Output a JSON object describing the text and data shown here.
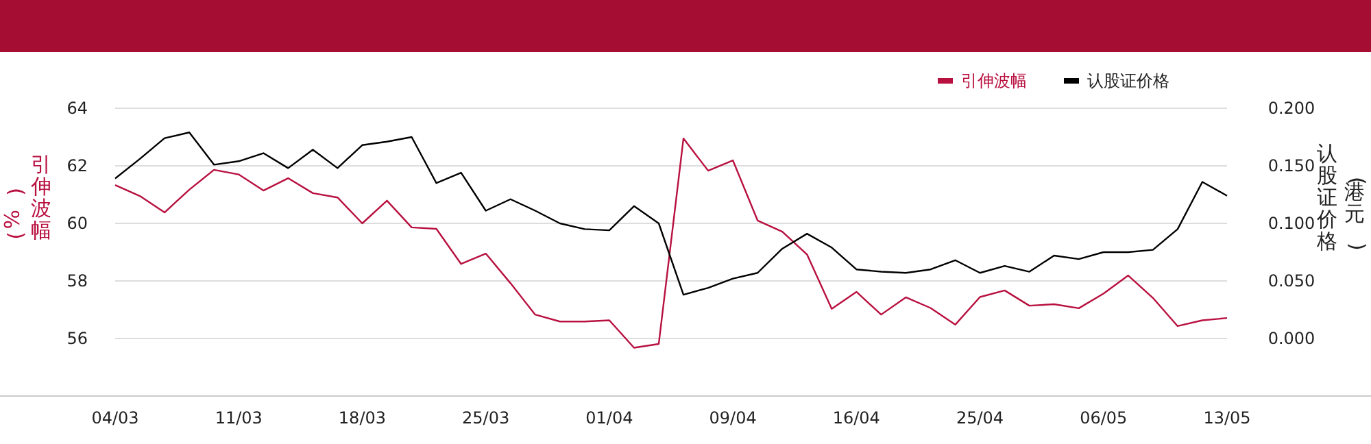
{
  "chart_data": {
    "type": "line",
    "categories": [
      "04/03",
      null,
      null,
      null,
      null,
      "11/03",
      null,
      null,
      null,
      null,
      "18/03",
      null,
      null,
      null,
      null,
      "25/03",
      null,
      null,
      null,
      null,
      "01/04",
      null,
      null,
      null,
      null,
      "09/04",
      null,
      null,
      null,
      null,
      "16/04",
      null,
      null,
      null,
      null,
      "25/04",
      null,
      null,
      null,
      null,
      "06/05",
      null,
      null,
      null,
      null,
      "13/05"
    ],
    "series": [
      {
        "name": "引伸波幅",
        "color": "#b8103f",
        "values": [
          61.33,
          60.95,
          60.38,
          61.17,
          61.86,
          61.7,
          61.14,
          61.57,
          61.05,
          60.9,
          60.0,
          60.79,
          59.86,
          59.81,
          58.59,
          58.95,
          57.92,
          56.83,
          56.59,
          56.59,
          56.63,
          55.68,
          55.81,
          62.95,
          61.83,
          62.19,
          60.1,
          59.71,
          58.92,
          57.03,
          57.62,
          56.83,
          57.43,
          57.06,
          56.48,
          57.44,
          57.67,
          57.14,
          57.19,
          57.05,
          57.56,
          58.19,
          57.41,
          56.43,
          56.63,
          56.71
        ]
      },
      {
        "name": "认股证价格",
        "color": "#000000",
        "axis": "y2",
        "values": [
          0.139,
          0.156,
          0.174,
          0.179,
          0.151,
          0.154,
          0.161,
          0.148,
          0.164,
          0.148,
          0.168,
          0.171,
          0.175,
          0.135,
          0.144,
          0.111,
          0.121,
          0.111,
          0.1,
          0.095,
          0.094,
          0.115,
          0.1,
          0.038,
          0.044,
          0.052,
          0.057,
          0.078,
          0.091,
          0.079,
          0.06,
          0.058,
          0.057,
          0.06,
          0.068,
          0.057,
          0.063,
          0.058,
          0.072,
          0.069,
          0.075,
          0.075,
          0.077,
          0.095,
          0.136,
          0.124
        ]
      }
    ],
    "ylabel": "引伸波幅\n(%)",
    "y2label": "认股证价格\n(港元)",
    "ylim": [
      54,
      64
    ],
    "yticks": [
      56,
      58,
      60,
      62,
      64
    ],
    "y2lim": [
      -0.05,
      0.2
    ],
    "y2ticks": [
      {
        "value": 0,
        "label": "0.000"
      },
      {
        "value": 0.05,
        "label": "0.050"
      },
      {
        "value": 0.1,
        "label": "0.100"
      },
      {
        "value": 0.15,
        "label": "0.150"
      },
      {
        "value": 0.2,
        "label": "0.200"
      }
    ],
    "grid": "y",
    "legend": "top right",
    "marker": "none",
    "line_style": "solid"
  }
}
